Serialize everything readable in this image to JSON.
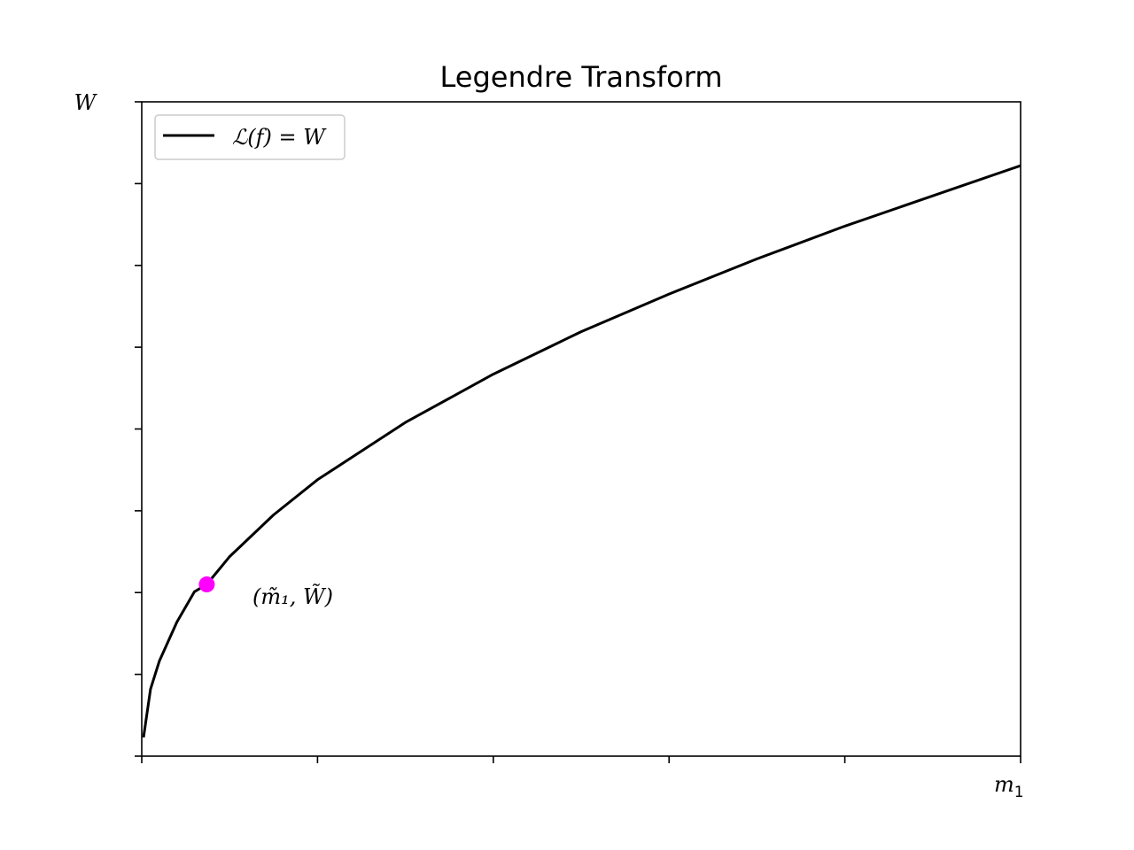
{
  "chart_data": {
    "type": "line",
    "title": "Legendre Transform",
    "xlabel": "m",
    "xlabel_subscript": "1",
    "ylabel": "W",
    "xlim": [
      0,
      5
    ],
    "ylim": [
      0,
      8
    ],
    "xticks": [
      0,
      1,
      2,
      3,
      4,
      5
    ],
    "yticks": [
      0,
      1,
      2,
      3,
      4,
      5,
      6,
      7,
      8
    ],
    "tick_labels_shown": false,
    "grid": false,
    "legend": {
      "location": "upper left"
    },
    "series": [
      {
        "name": "ℒ(f) = W",
        "color": "#000000",
        "x": [
          0.01,
          0.05,
          0.1,
          0.2,
          0.3,
          0.37,
          0.5,
          0.75,
          1.0,
          1.5,
          2.0,
          2.5,
          3.0,
          3.5,
          4.0,
          4.5,
          5.0
        ],
        "y": [
          0.23,
          0.82,
          1.16,
          1.64,
          2.01,
          2.1,
          2.44,
          2.95,
          3.38,
          4.08,
          4.67,
          5.19,
          5.65,
          6.08,
          6.48,
          6.85,
          7.22
        ]
      }
    ],
    "points": [
      {
        "label": "(m̃₁, W̃)",
        "x": 0.37,
        "y": 2.1,
        "color": "#ff00ff"
      }
    ]
  }
}
